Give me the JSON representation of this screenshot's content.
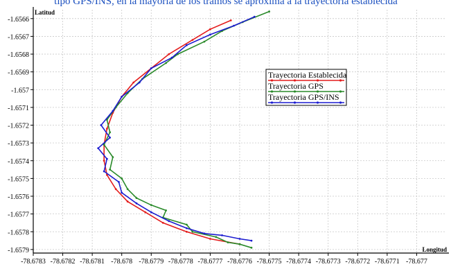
{
  "chart_data": {
    "type": "line",
    "title_fragment": "tipo GPS/INS, en la mayoría de los tramos se aproxima a la trayectoria establecida",
    "xlabel": "Longitud",
    "ylabel": "Latitud",
    "xlim": [
      -78.6783,
      -78.6769
    ],
    "ylim": [
      -1.65792,
      -1.65655
    ],
    "x_ticks": [
      "-78.6783",
      "-78.6782",
      "-78.6781",
      "-78.678",
      "-78.6779",
      "-78.6778",
      "-78.6777",
      "-78.6776",
      "-78.6775",
      "-78.6774",
      "-78.6773",
      "-78.6772",
      "-78.6771",
      "-78.677"
    ],
    "y_ticks": [
      "-1.6566",
      "-1.6567",
      "-1.6568",
      "-1.6569",
      "-1.657",
      "-1.6571",
      "-1.6572",
      "-1.6573",
      "-1.6574",
      "-1.6575",
      "-1.6576",
      "-1.6577",
      "-1.6578",
      "-1.6579"
    ],
    "grid": true,
    "legend_position": "right",
    "series": [
      {
        "name": "Trayectoria Establecida",
        "color": "#e41c1c",
        "x": [
          -78.67763,
          -78.6777,
          -78.67776,
          -78.67784,
          -78.6779,
          -78.67796,
          -78.678,
          -78.67803,
          -78.67805,
          -78.67806,
          -78.67806,
          -78.67805,
          -78.67802,
          -78.67798,
          -78.67792,
          -78.67786,
          -78.67778,
          -78.6777,
          -78.6776
        ],
        "y": [
          -1.65661,
          -1.65666,
          -1.65672,
          -1.6568,
          -1.65688,
          -1.65696,
          -1.65704,
          -1.65713,
          -1.65722,
          -1.65731,
          -1.6574,
          -1.65748,
          -1.65756,
          -1.65763,
          -1.65769,
          -1.65775,
          -1.6578,
          -1.65784,
          -1.65787
        ]
      },
      {
        "name": "Trayectoria GPS",
        "color": "#2a8a2a",
        "x": [
          -78.6775,
          -78.67759,
          -78.67766,
          -78.67772,
          -78.67781,
          -78.67785,
          -78.67793,
          -78.67798,
          -78.67802,
          -78.67805,
          -78.67804,
          -78.67806,
          -78.67803,
          -78.67804,
          -78.678,
          -78.67798,
          -78.67795,
          -78.6779,
          -78.67785,
          -78.67786,
          -78.67778,
          -78.67776,
          -78.67768,
          -78.67764,
          -78.6776,
          -78.67756
        ],
        "y": [
          -1.65656,
          -1.65662,
          -1.65667,
          -1.65673,
          -1.6568,
          -1.65685,
          -1.65694,
          -1.65702,
          -1.6571,
          -1.65717,
          -1.65724,
          -1.65731,
          -1.65738,
          -1.65745,
          -1.6575,
          -1.65756,
          -1.65761,
          -1.65765,
          -1.65768,
          -1.65772,
          -1.65776,
          -1.6578,
          -1.65783,
          -1.65786,
          -1.65787,
          -1.65789
        ]
      },
      {
        "name": "Trayectoria GPS/INS",
        "color": "#1c1cd0",
        "x": [
          -78.67755,
          -78.67762,
          -78.6777,
          -78.67778,
          -78.67783,
          -78.6779,
          -78.67794,
          -78.678,
          -78.67803,
          -78.67807,
          -78.67804,
          -78.67808,
          -78.67805,
          -78.67806,
          -78.67801,
          -78.678,
          -78.67795,
          -78.6779,
          -78.67784,
          -78.67778,
          -78.67772,
          -78.67766,
          -78.6776,
          -78.67756
        ],
        "y": [
          -1.65659,
          -1.65664,
          -1.65669,
          -1.65675,
          -1.65682,
          -1.65688,
          -1.65696,
          -1.65704,
          -1.65712,
          -1.6572,
          -1.65727,
          -1.65733,
          -1.65739,
          -1.65746,
          -1.65752,
          -1.65758,
          -1.65764,
          -1.65769,
          -1.65774,
          -1.65778,
          -1.65781,
          -1.65782,
          -1.65784,
          -1.65785
        ]
      }
    ]
  }
}
